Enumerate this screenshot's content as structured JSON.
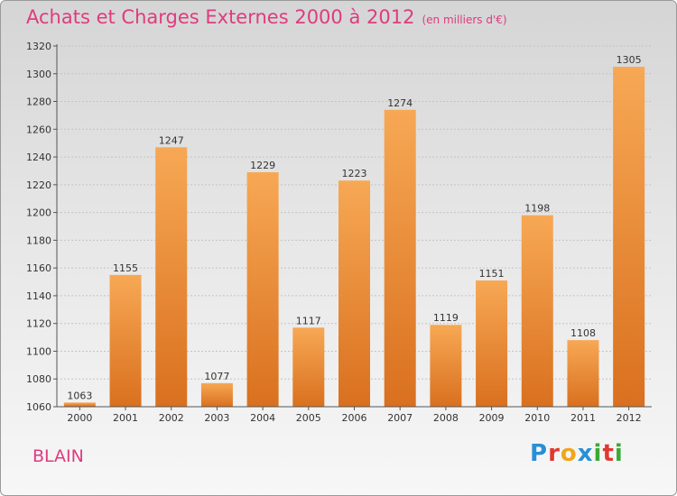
{
  "title": "Achats et Charges Externes 2000 à 2012",
  "unit": "(en milliers d'€)",
  "commune": "BLAIN",
  "logo": {
    "text": "Proxiti",
    "letters": [
      "P",
      "r",
      "o",
      "x",
      "i",
      "t",
      "i"
    ],
    "colors": [
      "#2a8fd6",
      "#e0392f",
      "#f2a51b",
      "#2a8fd6",
      "#3aa935",
      "#e0392f",
      "#3aa935"
    ]
  },
  "colors": {
    "title": "#df3b7e",
    "bar_top": "#f7a854",
    "bar_bottom": "#d9701f",
    "grid": "#c4c4c4"
  },
  "chart_data": {
    "type": "bar",
    "categories": [
      "2000",
      "2001",
      "2002",
      "2003",
      "2004",
      "2005",
      "2006",
      "2007",
      "2008",
      "2009",
      "2010",
      "2011",
      "2012"
    ],
    "values": [
      1063,
      1155,
      1247,
      1077,
      1229,
      1117,
      1223,
      1274,
      1119,
      1151,
      1198,
      1108,
      1305
    ],
    "title": "Achats et Charges Externes 2000 à 2012",
    "ylim": [
      1060,
      1320
    ],
    "yticks": [
      1060,
      1080,
      1100,
      1120,
      1140,
      1160,
      1180,
      1200,
      1220,
      1240,
      1260,
      1280,
      1300,
      1320
    ],
    "grid": true,
    "legend": "none"
  }
}
